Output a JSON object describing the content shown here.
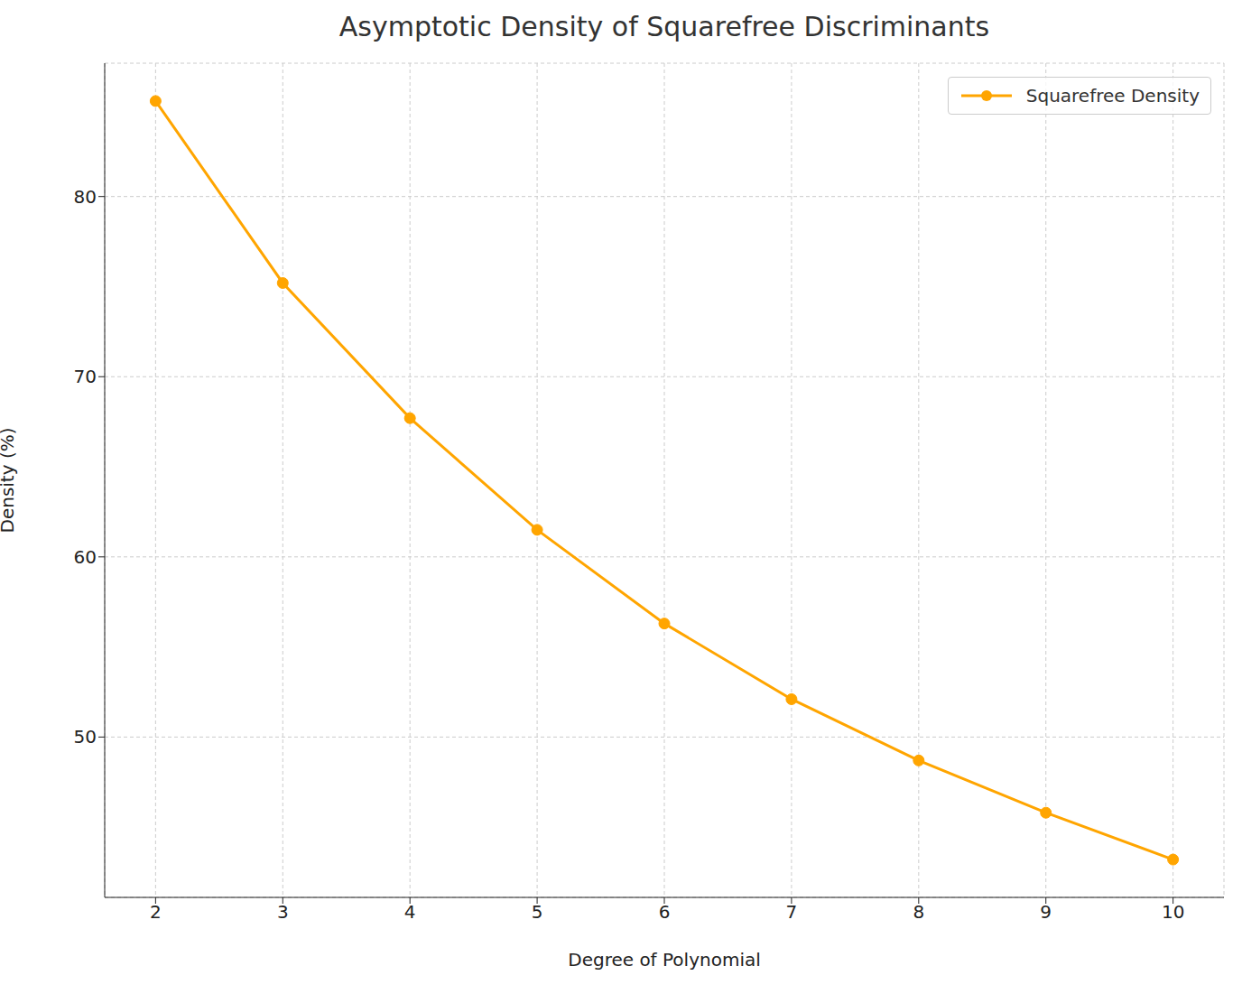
{
  "chart_data": {
    "type": "line",
    "title": "Asymptotic Density of Squarefree Discriminants",
    "x_label": "Degree of Polynomial",
    "y_label": "Density (%)",
    "x": [
      2,
      3,
      4,
      5,
      6,
      7,
      8,
      9,
      10
    ],
    "series": [
      {
        "name": "Squarefree Density",
        "color": "#ffa500",
        "marker": "circle",
        "line_style": "solid",
        "values": [
          85.3,
          75.2,
          67.7,
          61.5,
          56.3,
          52.1,
          48.7,
          45.8,
          43.2
        ]
      }
    ],
    "xlim": [
      1.6,
      10.4
    ],
    "xticks": [
      2,
      3,
      4,
      5,
      6,
      7,
      8,
      9,
      10
    ],
    "ylim": [
      41.1,
      87.4
    ],
    "yticks": [
      50,
      60,
      70,
      80
    ],
    "grid": true,
    "legend": "upper right"
  }
}
